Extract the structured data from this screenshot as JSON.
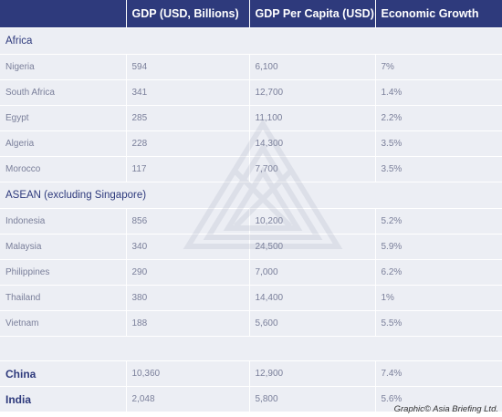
{
  "headers": [
    "",
    "GDP (USD, Billions)",
    "GDP Per Capita (USD)",
    "Economic Growth"
  ],
  "groups": {
    "africa": "Africa",
    "asean": "ASEAN (excluding Singapore)"
  },
  "africa_rows": [
    {
      "country": "Nigeria",
      "gdp": "594",
      "per_capita": "6,100",
      "growth": "7%"
    },
    {
      "country": "South Africa",
      "gdp": "341",
      "per_capita": "12,700",
      "growth": "1.4%"
    },
    {
      "country": "Egypt",
      "gdp": "285",
      "per_capita": "11,100",
      "growth": "2.2%"
    },
    {
      "country": "Algeria",
      "gdp": "228",
      "per_capita": "14,300",
      "growth": "3.5%"
    },
    {
      "country": "Morocco",
      "gdp": "117",
      "per_capita": "7,700",
      "growth": "3.5%"
    }
  ],
  "asean_rows": [
    {
      "country": "Indonesia",
      "gdp": "856",
      "per_capita": "10,200",
      "growth": "5.2%"
    },
    {
      "country": "Malaysia",
      "gdp": "340",
      "per_capita": "24,500",
      "growth": "5.9%"
    },
    {
      "country": "Philippines",
      "gdp": "290",
      "per_capita": "7,000",
      "growth": "6.2%"
    },
    {
      "country": "Thailand",
      "gdp": "380",
      "per_capita": "14,400",
      "growth": "1%"
    },
    {
      "country": "Vietnam",
      "gdp": "188",
      "per_capita": "5,600",
      "growth": "5.5%"
    }
  ],
  "major_rows": [
    {
      "country": "China",
      "gdp": "10,360",
      "per_capita": "12,900",
      "growth": "7.4%"
    },
    {
      "country": "India",
      "gdp": "2,048",
      "per_capita": "5,800",
      "growth": "5.6%"
    }
  ],
  "credit": "Graphic© Asia Briefing Ltd.",
  "colors": {
    "header_bg": "#2e3a7c",
    "cell_bg": "#eceef4",
    "text": "#7a7f9a",
    "accent": "#2e3a7c"
  }
}
